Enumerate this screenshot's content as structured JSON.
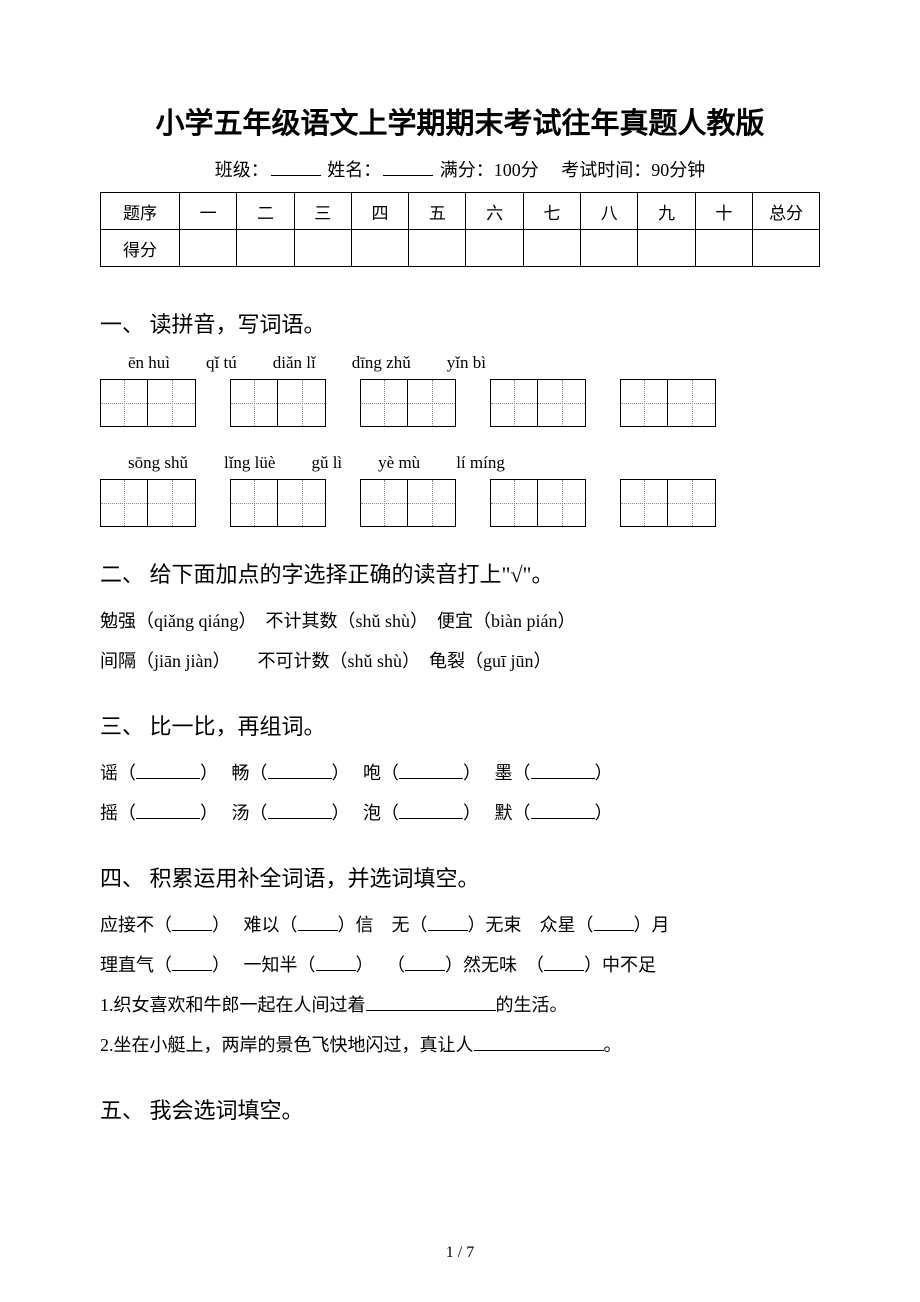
{
  "title": "小学五年级语文上学期期末考试往年真题人教版",
  "subheader": {
    "class_label": "班级：",
    "name_label": "姓名：",
    "full_score": "满分：100分",
    "time": "考试时间：90分钟"
  },
  "score_table": {
    "row_labels": [
      "题序",
      "得分"
    ],
    "columns": [
      "一",
      "二",
      "三",
      "四",
      "五",
      "六",
      "七",
      "八",
      "九",
      "十"
    ],
    "total_label": "总分"
  },
  "sections": {
    "s1": {
      "heading": "一、 读拼音，写词语。",
      "pinyin_rows": [
        [
          "ēn huì",
          "qǐ tú",
          "diǎn lǐ",
          "dīng zhǔ",
          "yǐn bì"
        ],
        [
          "sōng shǔ",
          "lǐng lüè",
          "gǔ lì",
          "yè mù",
          "lí míng"
        ]
      ]
    },
    "s2": {
      "heading": "二、 给下面加点的字选择正确的读音打上\"√\"。",
      "lines": [
        "勉强（qiǎng  qiáng）　不计其数（shǔ  shù）　便宜（biàn  pián）",
        "间隔（jiān  jiàn）　　不可计数（shǔ  shù）　龟裂（guī  jūn）"
      ]
    },
    "s3": {
      "heading": "三、 比一比，再组词。",
      "pairs": [
        [
          "谣",
          "畅",
          "咆",
          "墨"
        ],
        [
          "摇",
          "汤",
          "泡",
          "默"
        ]
      ]
    },
    "s4": {
      "heading": "四、 积累运用补全词语，并选词填空。",
      "line1": [
        "应接不",
        "难以",
        "信　无",
        "无束　众星",
        "月"
      ],
      "line2": [
        "理直气",
        "一知半",
        "",
        "然无味　",
        "中不足"
      ],
      "q1_prefix": "1.织女喜欢和牛郎一起在人间过着",
      "q1_suffix": "的生活。",
      "q2_prefix": "2.坐在小艇上，两岸的景色飞快地闪过，真让人",
      "q2_suffix": "。"
    },
    "s5": {
      "heading": "五、 我会选词填空。"
    }
  },
  "footer": "1 / 7"
}
